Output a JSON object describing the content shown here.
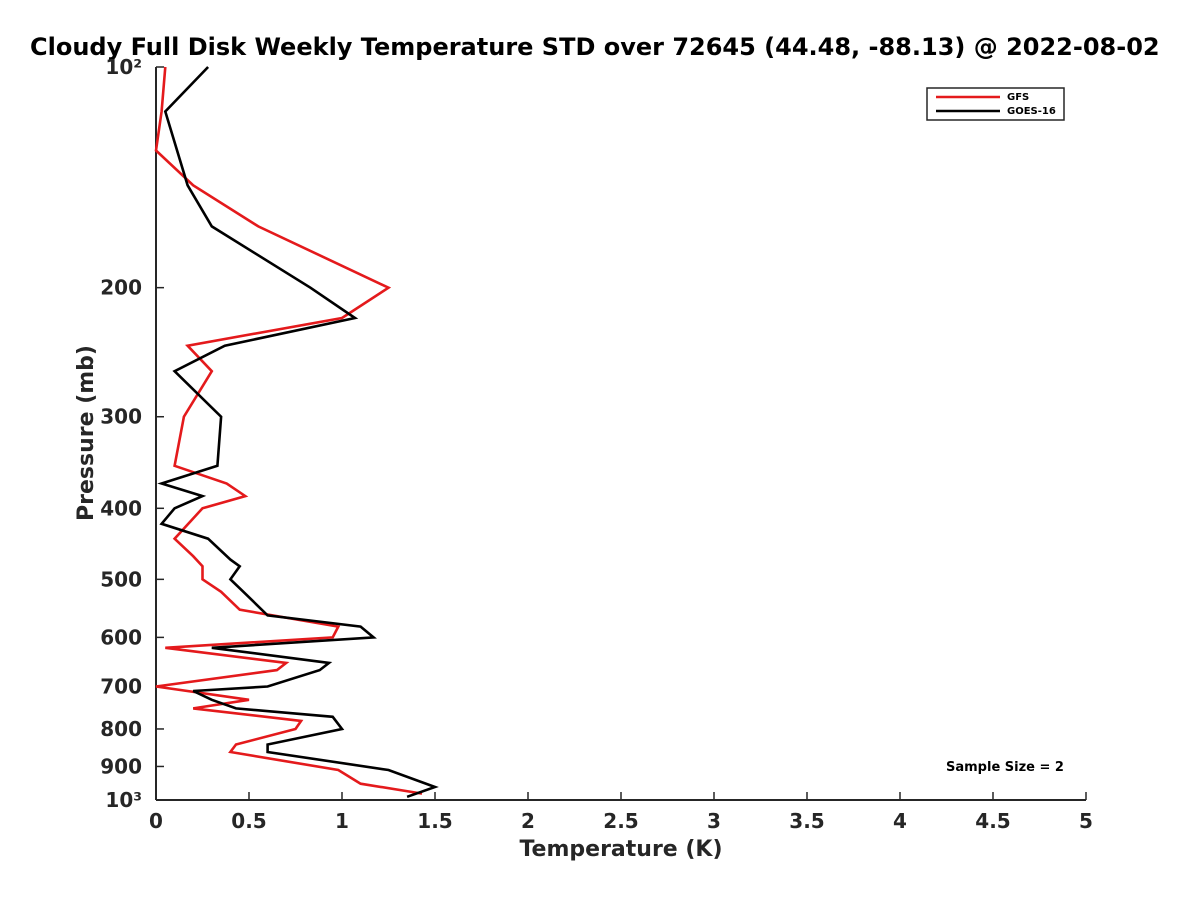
{
  "chart_data": {
    "type": "line",
    "title": "Cloudy Full Disk Weekly Temperature STD over 72645 (44.48, -88.13) @ 2022-08-02",
    "xlabel": "Temperature (K)",
    "ylabel": "Pressure (mb)",
    "xlim": [
      0,
      5
    ],
    "ylim": [
      100,
      1000
    ],
    "yscale": "log",
    "y_reversed": true,
    "x_ticks": [
      0,
      0.5,
      1,
      1.5,
      2,
      2.5,
      3,
      3.5,
      4,
      4.5,
      5
    ],
    "x_tick_labels": [
      "0",
      "0.5",
      "1",
      "1.5",
      "2",
      "2.5",
      "3",
      "3.5",
      "4",
      "4.5",
      "5"
    ],
    "y_ticks": [
      100,
      200,
      300,
      400,
      500,
      600,
      700,
      800,
      900,
      1000
    ],
    "y_tick_labels": [
      "10²",
      "200",
      "300",
      "400",
      "500",
      "600",
      "700",
      "800",
      "900",
      "10³"
    ],
    "grid": false,
    "legend_position": "top-right",
    "annotation": "Sample Size = 2",
    "series": [
      {
        "name": "GFS",
        "color": "#e41a1c",
        "x": [
          0.05,
          0.03,
          0.0,
          0.2,
          0.55,
          1.25,
          1.0,
          0.17,
          0.3,
          0.15,
          0.1,
          0.38,
          0.48,
          0.25,
          0.1,
          0.2,
          0.25,
          0.25,
          0.35,
          0.45,
          0.98,
          0.95,
          0.05,
          0.7,
          0.65,
          0.0,
          0.5,
          0.2,
          0.78,
          0.75,
          0.43,
          0.4,
          0.98,
          1.1,
          1.43
        ],
        "y": [
          100,
          115,
          130,
          145,
          165,
          200,
          220,
          240,
          260,
          300,
          350,
          370,
          385,
          400,
          440,
          465,
          480,
          500,
          520,
          550,
          580,
          600,
          620,
          650,
          665,
          700,
          730,
          750,
          780,
          800,
          840,
          860,
          910,
          950,
          980
        ]
      },
      {
        "name": "GOES-16",
        "color": "#000000",
        "x": [
          0.28,
          0.05,
          0.17,
          0.3,
          0.83,
          1.07,
          0.37,
          0.1,
          0.35,
          0.33,
          0.03,
          0.25,
          0.1,
          0.03,
          0.28,
          0.4,
          0.45,
          0.4,
          0.47,
          0.6,
          1.1,
          1.17,
          0.3,
          0.93,
          0.88,
          0.6,
          0.2,
          0.3,
          0.43,
          0.95,
          1.0,
          0.6,
          0.6,
          1.25,
          1.5,
          1.35
        ],
        "y": [
          100,
          115,
          145,
          165,
          200,
          220,
          240,
          260,
          300,
          350,
          370,
          385,
          400,
          420,
          440,
          470,
          480,
          500,
          520,
          560,
          580,
          600,
          620,
          650,
          665,
          700,
          710,
          730,
          750,
          770,
          800,
          840,
          860,
          910,
          960,
          990
        ]
      }
    ]
  }
}
